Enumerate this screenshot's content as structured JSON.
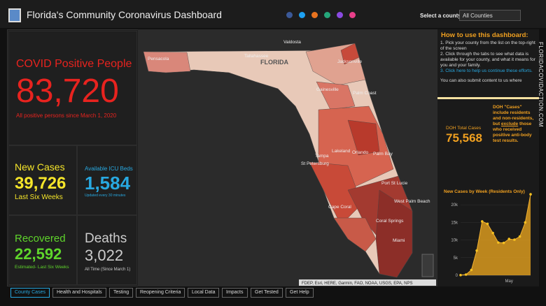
{
  "header": {
    "title": "Florida's Community Coronavirus Dashboard",
    "select_label": "Select a county",
    "select_value": "All Counties",
    "side_text": "FLORIDACOVIDACTION.COM"
  },
  "positive": {
    "title": "COVID Positive People",
    "value": "83,720",
    "note": "All positive persons since March 1, 2020"
  },
  "new_cases": {
    "title": "New Cases",
    "value": "39,726",
    "note": "Last Six Weeks"
  },
  "icu": {
    "title": "Available ICU Beds",
    "value": "1,584",
    "note": "Updated every 30 minutes"
  },
  "recovered": {
    "title": "Recovered",
    "value": "22,592",
    "note": "Estimated- Last Six Weeks"
  },
  "deaths": {
    "title": "Deaths",
    "value": "3,022",
    "note": "All Time (Since March 1)"
  },
  "howto": {
    "title": "How to use this dashboard:",
    "steps": [
      "1. Pick your county from the list on the top-right of the screen",
      "2. Click through the tabs to see what data is available for your county, and what it means for you and your family."
    ],
    "link": "3. Click here to help us continue these efforts.",
    "more": "You can also submit content to us where"
  },
  "doh": {
    "title": "DOH Total Cases",
    "value": "75,568",
    "note_start": "DOH \"Cases\" include residents and non-residents, but ",
    "note_emph": "exclude",
    "note_end": " those who received positive anti-body test results."
  },
  "map": {
    "labels": [
      "Valdosta",
      "Tallahassee",
      "FLORIDA",
      "Pensacola",
      "Jacksonville",
      "Gainesville",
      "Palm Coast",
      "Orlando",
      "Tampa",
      "Lakeland",
      "St Petersburg",
      "Palm Bay",
      "Port St Lucie",
      "West Palm Beach",
      "Cape Coral",
      "Coral Springs",
      "Miami"
    ],
    "attribution": "FDEP, Esri, HERE, Garmin, FAO, NOAA, USGS, EPA, NPS"
  },
  "tabs": [
    "County Cases",
    "Health and Hospitals",
    "Testing",
    "Reopening Criteria",
    "Local Data",
    "Impacts",
    "Get Tested",
    "Get Help"
  ],
  "chart_data": {
    "type": "area",
    "title": "New Cases by Week (Residents Only)",
    "categories": [
      null,
      null,
      null,
      null,
      null,
      null,
      null,
      null,
      null,
      "May",
      null,
      null,
      null,
      null
    ],
    "values": [
      50,
      200,
      1500,
      7000,
      15300,
      14600,
      12000,
      9300,
      9200,
      10300,
      10100,
      11000,
      15000,
      23000
    ],
    "color": "#d99a1f",
    "ylim": [
      0,
      25000
    ],
    "yticks": [
      0,
      {
        "value": 5000,
        "label": "5k"
      },
      {
        "value": 10000,
        "label": "10k"
      },
      {
        "value": 15000,
        "label": "15k"
      },
      {
        "value": 20000,
        "label": "20k"
      }
    ]
  }
}
